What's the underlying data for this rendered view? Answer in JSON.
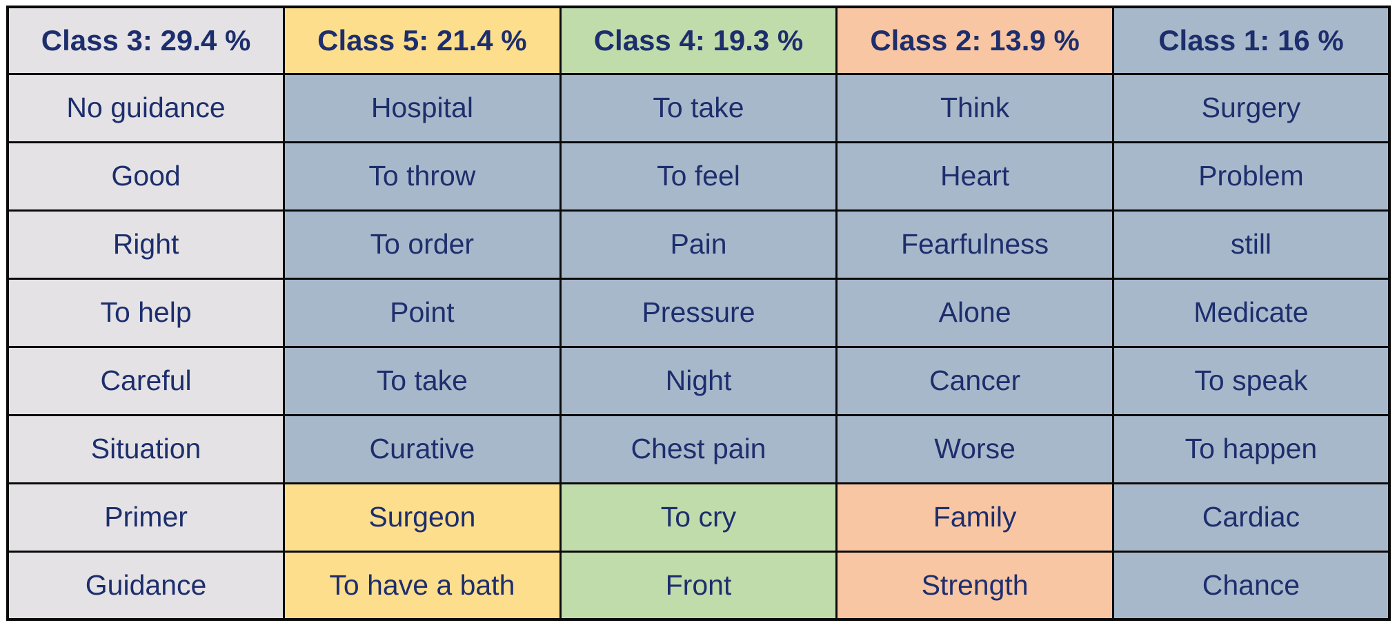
{
  "colors": {
    "gray": "#e4e2e4",
    "yellow": "#fcde8d",
    "green": "#c1dcab",
    "orange": "#f8c6a3",
    "blue": "#a8b8cb",
    "text": "#1d2e6d",
    "border": "#0a0a0a",
    "background": "#ffffff"
  },
  "chart_data": {
    "type": "table",
    "title": "",
    "layout": {
      "grid": "5 columns x 9 rows (1 header row + 8 word rows)",
      "notes": "Rows 1-6 of middle columns are blue-gray; rows 7-8 of columns 2-4 match their header color; column 1 is all gray; column 5 is all blue-gray"
    },
    "columns": [
      {
        "class_label": "Class 3",
        "percentage": 29.4,
        "header": "Class 3: 29.4 %",
        "header_color": "gray",
        "cells": [
          {
            "text": "No guidance",
            "color": "gray"
          },
          {
            "text": "Good",
            "color": "gray"
          },
          {
            "text": "Right",
            "color": "gray"
          },
          {
            "text": "To help",
            "color": "gray"
          },
          {
            "text": "Careful",
            "color": "gray"
          },
          {
            "text": "Situation",
            "color": "gray"
          },
          {
            "text": "Primer",
            "color": "gray"
          },
          {
            "text": "Guidance",
            "color": "gray"
          }
        ]
      },
      {
        "class_label": "Class 5",
        "percentage": 21.4,
        "header": "Class 5: 21.4 %",
        "header_color": "yellow",
        "cells": [
          {
            "text": "Hospital",
            "color": "blue"
          },
          {
            "text": "To throw",
            "color": "blue"
          },
          {
            "text": "To order",
            "color": "blue"
          },
          {
            "text": "Point",
            "color": "blue"
          },
          {
            "text": "To take",
            "color": "blue"
          },
          {
            "text": "Curative",
            "color": "blue"
          },
          {
            "text": "Surgeon",
            "color": "yellow"
          },
          {
            "text": "To have a bath",
            "color": "yellow"
          }
        ]
      },
      {
        "class_label": "Class 4",
        "percentage": 19.3,
        "header": "Class 4: 19.3 %",
        "header_color": "green",
        "cells": [
          {
            "text": "To take",
            "color": "blue"
          },
          {
            "text": "To feel",
            "color": "blue"
          },
          {
            "text": "Pain",
            "color": "blue"
          },
          {
            "text": "Pressure",
            "color": "blue"
          },
          {
            "text": "Night",
            "color": "blue"
          },
          {
            "text": "Chest pain",
            "color": "blue"
          },
          {
            "text": "To cry",
            "color": "green"
          },
          {
            "text": "Front",
            "color": "green"
          }
        ]
      },
      {
        "class_label": "Class 2",
        "percentage": 13.9,
        "header": "Class 2: 13.9 %",
        "header_color": "orange",
        "cells": [
          {
            "text": "Think",
            "color": "blue"
          },
          {
            "text": "Heart",
            "color": "blue"
          },
          {
            "text": "Fearfulness",
            "color": "blue"
          },
          {
            "text": "Alone",
            "color": "blue"
          },
          {
            "text": "Cancer",
            "color": "blue"
          },
          {
            "text": "Worse",
            "color": "blue"
          },
          {
            "text": "Family",
            "color": "orange"
          },
          {
            "text": "Strength",
            "color": "orange"
          }
        ]
      },
      {
        "class_label": "Class 1",
        "percentage": 16,
        "header": "Class 1: 16 %",
        "header_color": "blue",
        "cells": [
          {
            "text": "Surgery",
            "color": "blue"
          },
          {
            "text": "Problem",
            "color": "blue"
          },
          {
            "text": "still",
            "color": "blue"
          },
          {
            "text": "Medicate",
            "color": "blue"
          },
          {
            "text": "To speak",
            "color": "blue"
          },
          {
            "text": "To happen",
            "color": "blue"
          },
          {
            "text": "Cardiac",
            "color": "blue"
          },
          {
            "text": "Chance",
            "color": "blue"
          }
        ]
      }
    ]
  }
}
